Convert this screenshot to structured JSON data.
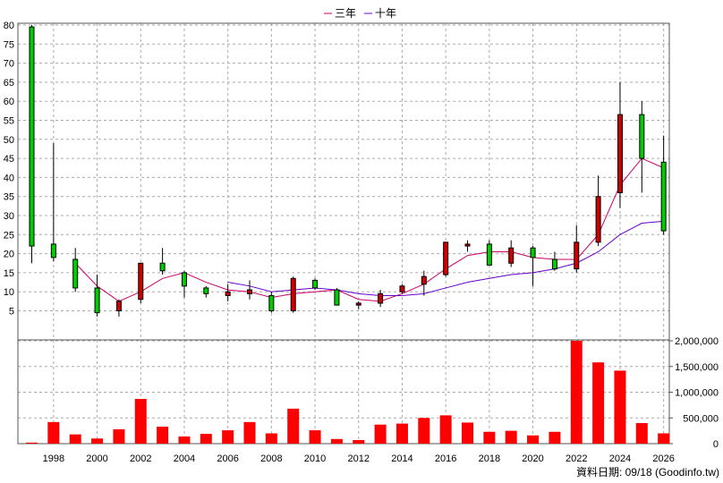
{
  "chart_data": {
    "type": "candlestick",
    "legend": {
      "placement": "top-center",
      "items": [
        {
          "name": "三年",
          "color": "#cc0066"
        },
        {
          "name": "十年",
          "color": "#6600cc"
        }
      ]
    },
    "grid": true,
    "colors": {
      "up": "#cc0000",
      "down": "#00cc00",
      "volume": "#ff0000",
      "bg": "#ffffff"
    },
    "x_axis": {
      "ticks": [
        1998,
        2000,
        2002,
        2004,
        2006,
        2008,
        2010,
        2012,
        2014,
        2016,
        2018,
        2020,
        2022,
        2024,
        2026
      ]
    },
    "price_axis": {
      "min": 0,
      "max": 80,
      "ticks": [
        5,
        10,
        15,
        20,
        25,
        30,
        35,
        40,
        45,
        50,
        55,
        60,
        65,
        70,
        75,
        80
      ]
    },
    "volume_axis": {
      "min": 0,
      "max": 2000000,
      "ticks": [
        0,
        500000,
        1000000,
        1500000,
        2000000
      ],
      "tick_labels": [
        "0",
        "500,000",
        "1,000,000",
        "1,500,000",
        "2,000,000"
      ]
    },
    "candles": [
      {
        "year": 1997,
        "open": 79.5,
        "high": 80,
        "low": 17.5,
        "close": 22
      },
      {
        "year": 1998,
        "open": 22.5,
        "high": 49,
        "low": 18,
        "close": 19
      },
      {
        "year": 1999,
        "open": 18.5,
        "high": 21.5,
        "low": 10,
        "close": 11
      },
      {
        "year": 2000,
        "open": 11,
        "high": 14.5,
        "low": 3.5,
        "close": 4.5
      },
      {
        "year": 2001,
        "open": 5,
        "high": 8,
        "low": 3.5,
        "close": 7.5
      },
      {
        "year": 2002,
        "open": 8,
        "high": 17.5,
        "low": 7,
        "close": 17.5
      },
      {
        "year": 2003,
        "open": 17.5,
        "high": 21.5,
        "low": 14.5,
        "close": 15.5
      },
      {
        "year": 2004,
        "open": 15,
        "high": 15.5,
        "low": 8.5,
        "close": 11.5
      },
      {
        "year": 2005,
        "open": 11,
        "high": 11.5,
        "low": 8.5,
        "close": 9.5
      },
      {
        "year": 2006,
        "open": 9,
        "high": 12,
        "low": 7.5,
        "close": 10
      },
      {
        "year": 2007,
        "open": 9.5,
        "high": 13,
        "low": 8,
        "close": 10.5
      },
      {
        "year": 2008,
        "open": 9,
        "high": 10,
        "low": 4.5,
        "close": 5
      },
      {
        "year": 2009,
        "open": 5,
        "high": 14,
        "low": 4.5,
        "close": 13.5
      },
      {
        "year": 2010,
        "open": 13,
        "high": 13.5,
        "low": 10.5,
        "close": 11
      },
      {
        "year": 2011,
        "open": 10.5,
        "high": 11,
        "low": 6.5,
        "close": 6.5
      },
      {
        "year": 2012,
        "open": 6.5,
        "high": 7.5,
        "low": 5.5,
        "close": 7
      },
      {
        "year": 2013,
        "open": 7,
        "high": 10.5,
        "low": 6,
        "close": 9.5
      },
      {
        "year": 2014,
        "open": 10,
        "high": 12,
        "low": 9.5,
        "close": 11.5
      },
      {
        "year": 2015,
        "open": 12,
        "high": 15.5,
        "low": 9,
        "close": 14
      },
      {
        "year": 2016,
        "open": 14.5,
        "high": 23,
        "low": 14,
        "close": 23
      },
      {
        "year": 2017,
        "open": 22,
        "high": 23.5,
        "low": 20.5,
        "close": 22.5
      },
      {
        "year": 2018,
        "open": 22.5,
        "high": 23.5,
        "low": 17,
        "close": 17
      },
      {
        "year": 2019,
        "open": 17.5,
        "high": 23.5,
        "low": 16.5,
        "close": 21.5
      },
      {
        "year": 2020,
        "open": 21.5,
        "high": 22,
        "low": 11.5,
        "close": 19
      },
      {
        "year": 2021,
        "open": 18.5,
        "high": 20.5,
        "low": 15.5,
        "close": 16
      },
      {
        "year": 2022,
        "open": 16,
        "high": 27.5,
        "low": 15,
        "close": 23
      },
      {
        "year": 2023,
        "open": 23,
        "high": 40.5,
        "low": 22,
        "close": 35
      },
      {
        "year": 2024,
        "open": 36,
        "high": 65,
        "low": 32,
        "close": 56.5
      },
      {
        "year": 2025,
        "open": 56.5,
        "high": 60,
        "low": 36,
        "close": 45
      },
      {
        "year": 2026,
        "open": 44,
        "high": 51,
        "low": 25,
        "close": 26
      }
    ],
    "volume": [
      {
        "year": 1997,
        "value": 20000
      },
      {
        "year": 1998,
        "value": 420000
      },
      {
        "year": 1999,
        "value": 180000
      },
      {
        "year": 2000,
        "value": 100000
      },
      {
        "year": 2001,
        "value": 280000
      },
      {
        "year": 2002,
        "value": 870000
      },
      {
        "year": 2003,
        "value": 330000
      },
      {
        "year": 2004,
        "value": 140000
      },
      {
        "year": 2005,
        "value": 190000
      },
      {
        "year": 2006,
        "value": 260000
      },
      {
        "year": 2007,
        "value": 420000
      },
      {
        "year": 2008,
        "value": 200000
      },
      {
        "year": 2009,
        "value": 680000
      },
      {
        "year": 2010,
        "value": 260000
      },
      {
        "year": 2011,
        "value": 90000
      },
      {
        "year": 2012,
        "value": 70000
      },
      {
        "year": 2013,
        "value": 370000
      },
      {
        "year": 2014,
        "value": 390000
      },
      {
        "year": 2015,
        "value": 500000
      },
      {
        "year": 2016,
        "value": 550000
      },
      {
        "year": 2017,
        "value": 410000
      },
      {
        "year": 2018,
        "value": 230000
      },
      {
        "year": 2019,
        "value": 250000
      },
      {
        "year": 2020,
        "value": 160000
      },
      {
        "year": 2021,
        "value": 230000
      },
      {
        "year": 2022,
        "value": 2000000
      },
      {
        "year": 2023,
        "value": 1580000
      },
      {
        "year": 2024,
        "value": 1420000
      },
      {
        "year": 2025,
        "value": 400000
      },
      {
        "year": 2026,
        "value": 200000
      }
    ],
    "ma3": [
      {
        "year": 1999,
        "value": 17.5
      },
      {
        "year": 2000,
        "value": 11.5
      },
      {
        "year": 2001,
        "value": 7.5
      },
      {
        "year": 2002,
        "value": 10
      },
      {
        "year": 2003,
        "value": 13.5
      },
      {
        "year": 2004,
        "value": 15
      },
      {
        "year": 2005,
        "value": 12.5
      },
      {
        "year": 2006,
        "value": 10.5
      },
      {
        "year": 2007,
        "value": 10
      },
      {
        "year": 2008,
        "value": 8.5
      },
      {
        "year": 2009,
        "value": 9.5
      },
      {
        "year": 2010,
        "value": 10
      },
      {
        "year": 2011,
        "value": 10.5
      },
      {
        "year": 2012,
        "value": 8
      },
      {
        "year": 2013,
        "value": 7.5
      },
      {
        "year": 2014,
        "value": 9.5
      },
      {
        "year": 2015,
        "value": 12
      },
      {
        "year": 2016,
        "value": 16
      },
      {
        "year": 2017,
        "value": 19.5
      },
      {
        "year": 2018,
        "value": 20.5
      },
      {
        "year": 2019,
        "value": 20.5
      },
      {
        "year": 2020,
        "value": 19
      },
      {
        "year": 2021,
        "value": 18.5
      },
      {
        "year": 2022,
        "value": 18.5
      },
      {
        "year": 2023,
        "value": 25
      },
      {
        "year": 2024,
        "value": 38
      },
      {
        "year": 2025,
        "value": 45
      },
      {
        "year": 2026,
        "value": 42.5
      }
    ],
    "ma10": [
      {
        "year": 2006,
        "value": 12.5
      },
      {
        "year": 2007,
        "value": 11.5
      },
      {
        "year": 2008,
        "value": 10
      },
      {
        "year": 2009,
        "value": 10.5
      },
      {
        "year": 2010,
        "value": 11
      },
      {
        "year": 2011,
        "value": 10.5
      },
      {
        "year": 2012,
        "value": 9.5
      },
      {
        "year": 2013,
        "value": 9
      },
      {
        "year": 2014,
        "value": 9
      },
      {
        "year": 2015,
        "value": 9.5
      },
      {
        "year": 2016,
        "value": 11
      },
      {
        "year": 2017,
        "value": 12.5
      },
      {
        "year": 2018,
        "value": 13.5
      },
      {
        "year": 2019,
        "value": 14.5
      },
      {
        "year": 2020,
        "value": 15
      },
      {
        "year": 2021,
        "value": 16
      },
      {
        "year": 2022,
        "value": 17.5
      },
      {
        "year": 2023,
        "value": 20.5
      },
      {
        "year": 2024,
        "value": 25
      },
      {
        "year": 2025,
        "value": 28
      },
      {
        "year": 2026,
        "value": 28.5
      }
    ]
  },
  "footer": {
    "source_label": "資料日期: 09/18  (Goodinfo.tw)"
  }
}
